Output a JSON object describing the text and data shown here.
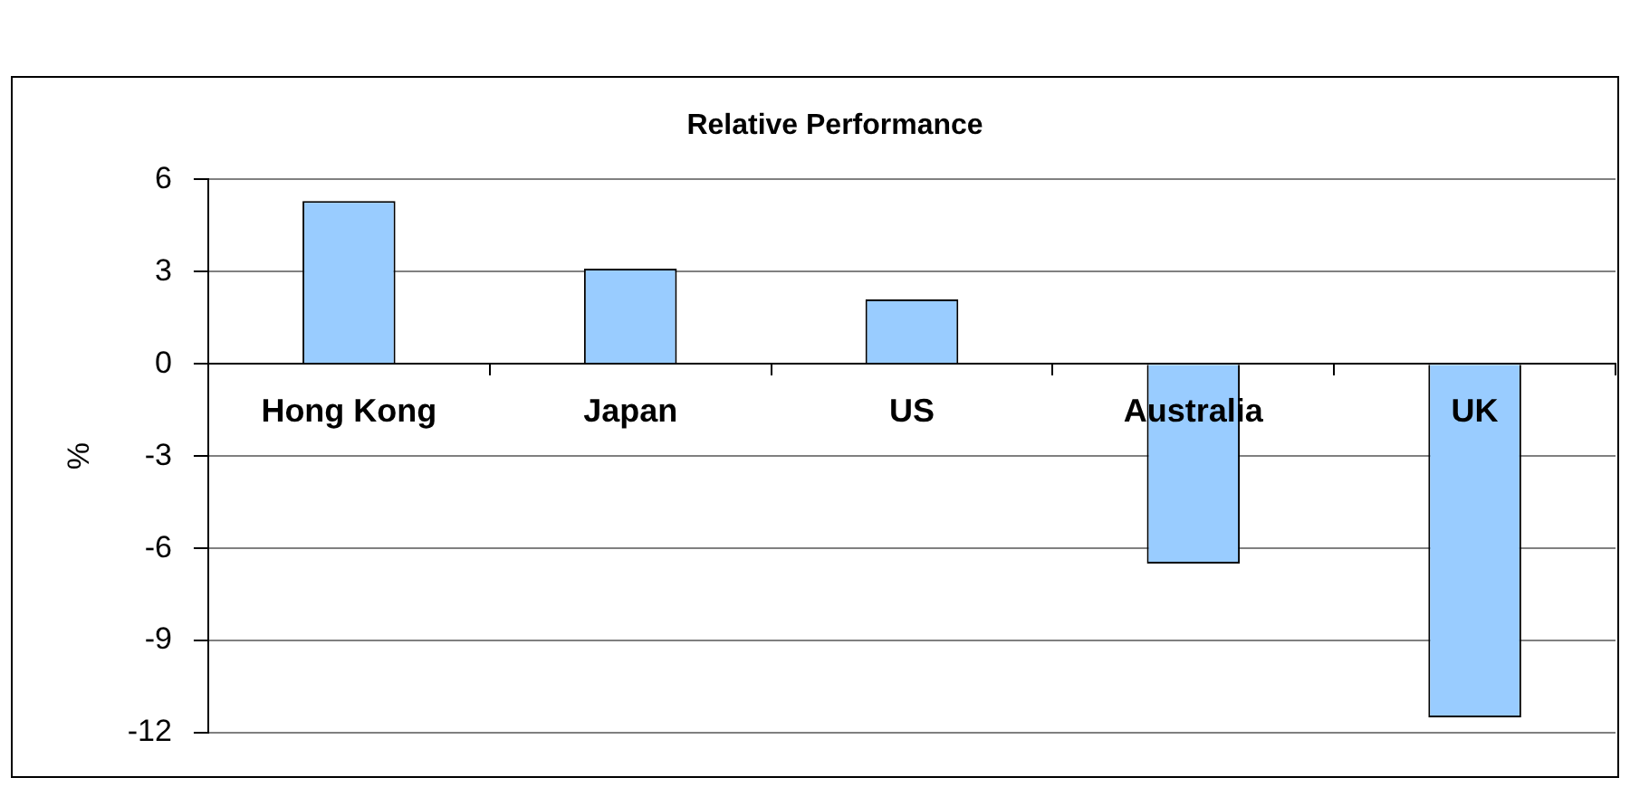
{
  "chart_data": {
    "type": "bar",
    "title": "Relative Performance",
    "ylabel": "%",
    "categories": [
      "Hong Kong",
      "Japan",
      "US",
      "Australia",
      "UK"
    ],
    "values": [
      5.3,
      3.1,
      2.1,
      -6.5,
      -11.5
    ],
    "color": "#99ccff",
    "ylim": [
      -12,
      6
    ],
    "yticks": [
      -12,
      -9,
      -6,
      -3,
      0,
      3,
      6
    ],
    "grid": "y"
  }
}
